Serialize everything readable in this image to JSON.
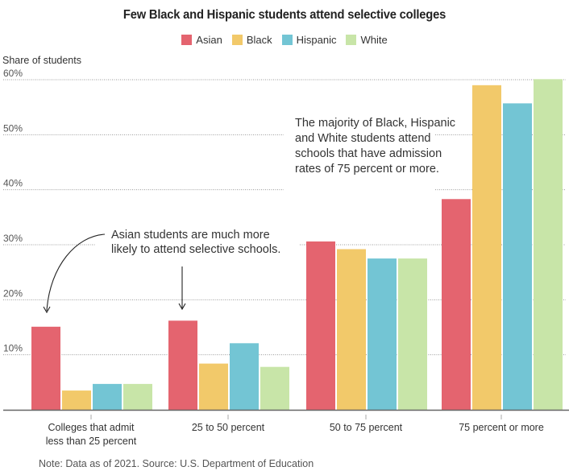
{
  "chart_data": {
    "type": "bar",
    "title": "Few Black and Hispanic students attend selective colleges",
    "ylabel": "Share of students",
    "xlabel": "",
    "ylim": [
      0,
      60
    ],
    "yticks": [
      10,
      20,
      30,
      40,
      50,
      60
    ],
    "ytick_labels": [
      "10%",
      "20%",
      "30%",
      "40%",
      "50%",
      "60%"
    ],
    "grid": true,
    "legend_position": "top-center",
    "categories": [
      [
        "Colleges that admit",
        "less than 25 percent"
      ],
      [
        "25 to 50 percent"
      ],
      [
        "50 to 75 percent"
      ],
      [
        "75 percent or more"
      ]
    ],
    "series": [
      {
        "name": "Asian",
        "color": "#e4646f",
        "values": [
          15.1,
          16.2,
          30.6,
          38.3
        ]
      },
      {
        "name": "Black",
        "color": "#f2c96a",
        "values": [
          3.5,
          8.4,
          29.2,
          59.0
        ]
      },
      {
        "name": "Hispanic",
        "color": "#73c5d4",
        "values": [
          4.7,
          12.1,
          27.5,
          55.7
        ]
      },
      {
        "name": "White",
        "color": "#c8e5a8",
        "values": [
          4.7,
          7.8,
          27.5,
          60.1
        ]
      }
    ],
    "annotations": [
      {
        "lines": [
          "Asian students are much more",
          "likely to attend selective schools."
        ]
      },
      {
        "lines": [
          "The majority of Black, Hispanic",
          "and White students attend",
          "schools that have admission",
          "rates of 75 percent or more."
        ]
      }
    ],
    "note": "Note: Data as of 2021. Source: U.S. Department of Education"
  }
}
